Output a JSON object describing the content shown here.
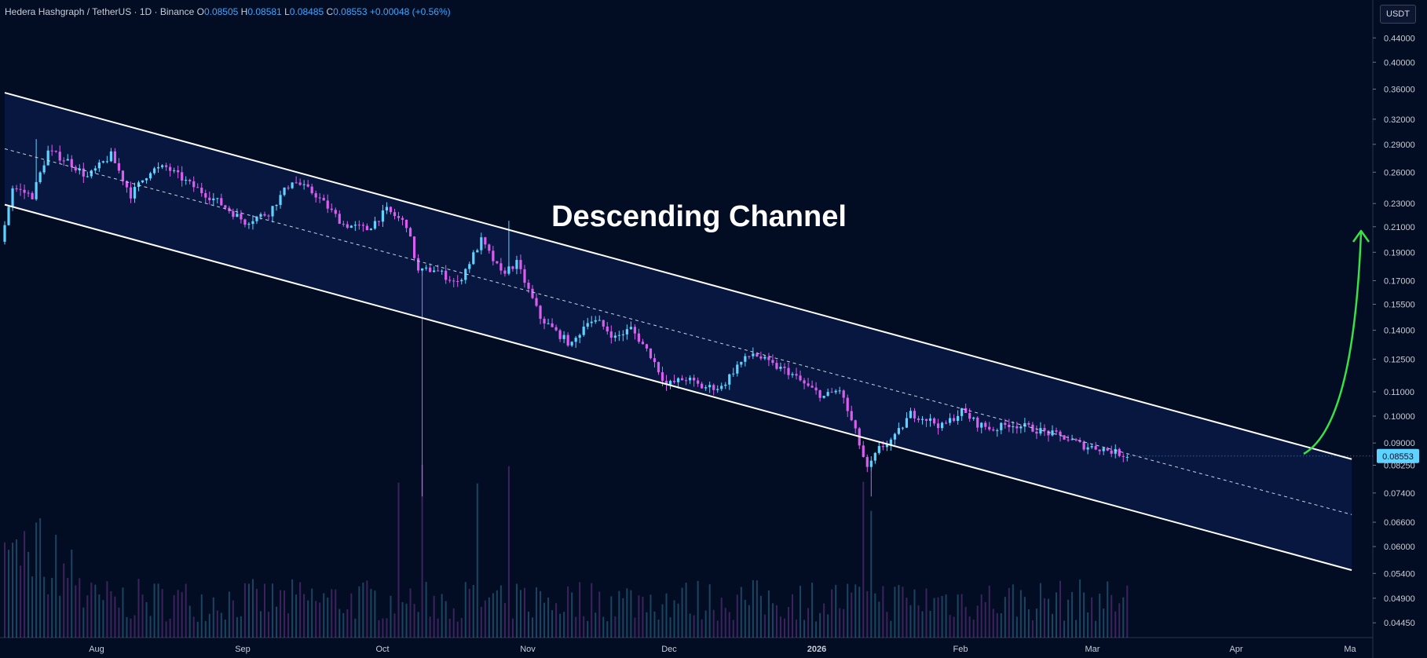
{
  "header": {
    "symbol": "Hedera Hashgraph / TetherUS · 1D · Binance",
    "open_label": "O",
    "open": "0.08505",
    "high_label": "H",
    "high": "0.08581",
    "low_label": "L",
    "low": "0.08485",
    "close_label": "C",
    "close": "0.08553",
    "change": "+0.00048 (+0.56%)"
  },
  "currency_button": "USDT",
  "colors": {
    "background": "#020d24",
    "up": "#5fd3ff",
    "down": "#d95ef0",
    "channel_fill": "#0c2157",
    "channel_line": "#ffffff",
    "arrow": "#39e046",
    "price_badge": "#5fd3ff"
  },
  "chart_data": {
    "type": "candlestick",
    "title": "Descending Channel",
    "y_scale": "log",
    "ylim": [
      0.042,
      0.48
    ],
    "y_ticks": [
      "0.44000",
      "0.40000",
      "0.36000",
      "0.32000",
      "0.29000",
      "0.26000",
      "0.23000",
      "0.21000",
      "0.19000",
      "0.17000",
      "0.15500",
      "0.14000",
      "0.12500",
      "0.11000",
      "0.10000",
      "0.09000",
      "0.08250",
      "0.07400",
      "0.06600",
      "0.06000",
      "0.05400",
      "0.04900",
      "0.04450"
    ],
    "x_ticks": [
      "Aug",
      "Sep",
      "Oct",
      "Nov",
      "Dec",
      "2026",
      "Feb",
      "Mar",
      "Apr",
      "Ma"
    ],
    "last_price": "0.08553",
    "path": [
      [
        0,
        0.198
      ],
      [
        3,
        0.245
      ],
      [
        8,
        0.237
      ],
      [
        12,
        0.282
      ],
      [
        17,
        0.272
      ],
      [
        22,
        0.255
      ],
      [
        28,
        0.278
      ],
      [
        33,
        0.238
      ],
      [
        38,
        0.262
      ],
      [
        42,
        0.265
      ],
      [
        48,
        0.248
      ],
      [
        55,
        0.232
      ],
      [
        62,
        0.214
      ],
      [
        68,
        0.222
      ],
      [
        74,
        0.252
      ],
      [
        80,
        0.238
      ],
      [
        87,
        0.212
      ],
      [
        93,
        0.208
      ],
      [
        98,
        0.224
      ],
      [
        103,
        0.212
      ],
      [
        106,
        0.176
      ],
      [
        110,
        0.178
      ],
      [
        116,
        0.168
      ],
      [
        122,
        0.199
      ],
      [
        127,
        0.175
      ],
      [
        131,
        0.182
      ],
      [
        137,
        0.147
      ],
      [
        141,
        0.139
      ],
      [
        145,
        0.132
      ],
      [
        149,
        0.146
      ],
      [
        152,
        0.144
      ],
      [
        156,
        0.136
      ],
      [
        160,
        0.141
      ],
      [
        165,
        0.127
      ],
      [
        169,
        0.113
      ],
      [
        174,
        0.116
      ],
      [
        178,
        0.112
      ],
      [
        183,
        0.112
      ],
      [
        187,
        0.122
      ],
      [
        191,
        0.128
      ],
      [
        196,
        0.122
      ],
      [
        200,
        0.119
      ],
      [
        205,
        0.112
      ],
      [
        209,
        0.108
      ],
      [
        213,
        0.111
      ],
      [
        217,
        0.094
      ],
      [
        220,
        0.081
      ],
      [
        223,
        0.088
      ],
      [
        227,
        0.092
      ],
      [
        231,
        0.101
      ],
      [
        235,
        0.099
      ],
      [
        239,
        0.096
      ],
      [
        244,
        0.102
      ],
      [
        248,
        0.097
      ],
      [
        252,
        0.095
      ],
      [
        256,
        0.097
      ],
      [
        260,
        0.096
      ],
      [
        265,
        0.094
      ],
      [
        270,
        0.092
      ],
      [
        275,
        0.089
      ],
      [
        280,
        0.088
      ],
      [
        285,
        0.086
      ]
    ],
    "spikes": [
      [
        106,
        0.073
      ],
      [
        220,
        0.073
      ],
      [
        8,
        0.296
      ],
      [
        128,
        0.215
      ]
    ],
    "channel_upper": [
      [
        0,
        0.355
      ],
      [
        342,
        0.0845
      ]
    ],
    "channel_lower": [
      [
        0,
        0.229
      ],
      [
        342,
        0.0547
      ]
    ],
    "channel_mid": [
      [
        0,
        0.285
      ],
      [
        342,
        0.068
      ]
    ]
  }
}
